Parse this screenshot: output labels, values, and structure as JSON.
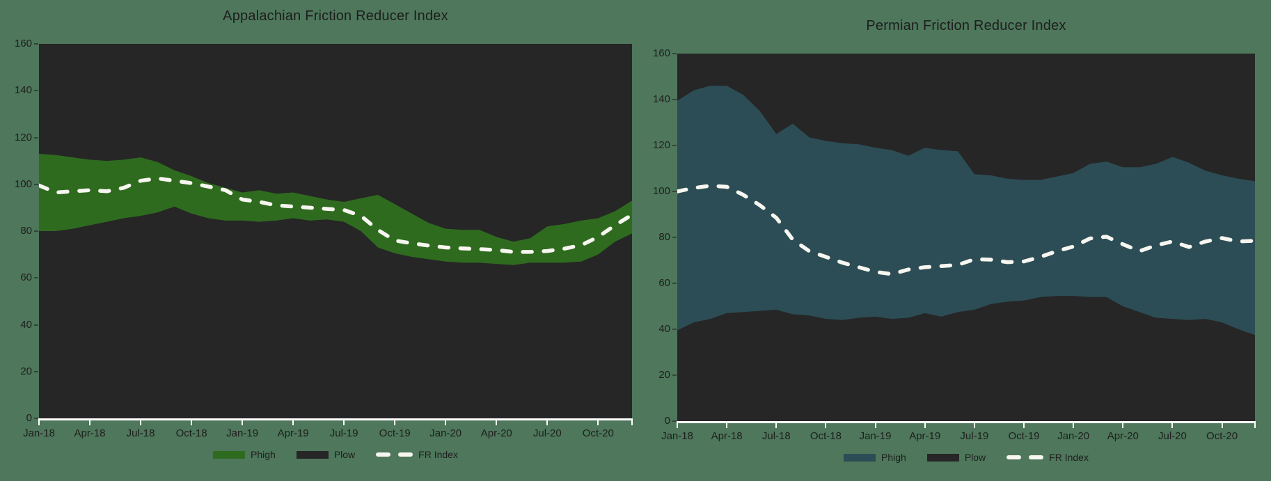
{
  "style": {
    "page_bg": "#4e775b",
    "plot_bg": "#262626",
    "text_color": "#1e1e1e",
    "axis_color": "#ffffff",
    "fr_line_color": "#f7f6f0",
    "plow_swatch_color": "#262626"
  },
  "chart_data": [
    {
      "type": "area",
      "title": "Appalachian Friction Reducer Index",
      "band_color": "#2f6b1f",
      "x_frequency": "monthly",
      "x_range": [
        "Jan-18",
        "Dec-20"
      ],
      "x_tick_labels": [
        "Jan-18",
        "Apr-18",
        "Jul-18",
        "Oct-18",
        "Jan-19",
        "Apr-19",
        "Jul-19",
        "Oct-19",
        "Jan-20",
        "Apr-20",
        "Jul-20",
        "Oct-20"
      ],
      "ylim": [
        0,
        160
      ],
      "y_ticks": [
        160,
        140,
        120,
        100,
        80,
        60,
        40,
        20,
        0
      ],
      "grid": false,
      "legend_position": "bottom-center",
      "legend": [
        {
          "label": "Phigh",
          "swatch": "band"
        },
        {
          "label": "Plow",
          "swatch": "plow"
        },
        {
          "label": "FR Index",
          "swatch": "dash"
        }
      ],
      "series": [
        {
          "name": "Phigh",
          "role": "band-upper",
          "values": [
            113,
            112.5,
            111.5,
            110.5,
            110,
            110.5,
            111.5,
            109.5,
            106,
            103.5,
            100.5,
            98.5,
            96.5,
            97.5,
            96,
            96.5,
            95,
            93.5,
            92.5,
            94,
            95.5,
            91.5,
            87.5,
            83.5,
            81,
            80.5,
            80.5,
            77.5,
            75.5,
            77,
            82,
            83,
            84.5,
            85.5,
            88.5,
            93
          ]
        },
        {
          "name": "Plow",
          "role": "band-lower",
          "values": [
            80,
            80,
            81,
            82.5,
            84,
            85.5,
            86.5,
            88,
            90.5,
            87.5,
            85.5,
            84.5,
            84.5,
            84,
            84.5,
            85.5,
            84.5,
            85,
            84,
            80,
            73,
            70.5,
            69,
            68,
            67,
            66.5,
            66.5,
            66,
            65.5,
            66.5,
            66.5,
            66.5,
            67,
            70,
            75.5,
            79
          ]
        },
        {
          "name": "FR Index",
          "role": "dashed-line",
          "values": [
            99.5,
            96.5,
            97,
            97.5,
            97,
            98.5,
            101.5,
            102.5,
            101.5,
            100.5,
            99,
            97.5,
            93.5,
            92.5,
            91,
            90.5,
            90,
            89.5,
            89,
            86.5,
            80.5,
            76,
            74.8,
            73.8,
            73,
            72.6,
            72.3,
            71.9,
            71.1,
            71.1,
            71.5,
            72.5,
            74,
            77.5,
            82.5,
            87
          ]
        }
      ]
    },
    {
      "type": "area",
      "title": "Permian Friction Reducer Index",
      "band_color": "#2c4d55",
      "x_frequency": "monthly",
      "x_range": [
        "Jan-18",
        "Dec-20"
      ],
      "x_tick_labels": [
        "Jan-18",
        "Apr-18",
        "Jul-18",
        "Oct-18",
        "Jan-19",
        "Apr-19",
        "Jul-19",
        "Oct-19",
        "Jan-20",
        "Apr-20",
        "Jul-20",
        "Oct-20"
      ],
      "ylim": [
        0,
        160
      ],
      "y_ticks": [
        160,
        140,
        120,
        100,
        80,
        60,
        40,
        20,
        0
      ],
      "grid": false,
      "legend_position": "bottom-center",
      "legend": [
        {
          "label": "Phigh",
          "swatch": "band"
        },
        {
          "label": "Plow",
          "swatch": "plow"
        },
        {
          "label": "FR Index",
          "swatch": "dash"
        }
      ],
      "series": [
        {
          "name": "Phigh",
          "role": "band-upper",
          "values": [
            139.5,
            144,
            146,
            146,
            142,
            135,
            125,
            129.5,
            123.5,
            122,
            121,
            120.5,
            119,
            118,
            115.5,
            119,
            118,
            117.5,
            107.5,
            107,
            105.5,
            105,
            105,
            106.5,
            108,
            112,
            113,
            110.5,
            110.5,
            112,
            115,
            112.5,
            109,
            107,
            105.5,
            104.5
          ]
        },
        {
          "name": "Plow",
          "role": "band-lower",
          "values": [
            39.5,
            43,
            44.5,
            47,
            47.5,
            48,
            48.5,
            46.5,
            46,
            44.5,
            44,
            45,
            45.5,
            44.5,
            45,
            47,
            45.5,
            47.5,
            48.5,
            51,
            52,
            52.5,
            54,
            54.5,
            54.5,
            54,
            54,
            50,
            47.5,
            45,
            44.5,
            44,
            44.5,
            43,
            40,
            37.5
          ]
        },
        {
          "name": "FR Index",
          "role": "dashed-line",
          "values": [
            100,
            101.5,
            102.5,
            102,
            98.5,
            94,
            88.5,
            79,
            74,
            71.5,
            69,
            67,
            65,
            64,
            66,
            67,
            67.5,
            68,
            70.5,
            70.3,
            69.2,
            69.5,
            71.5,
            74,
            76,
            79.5,
            80.3,
            77,
            74,
            76.5,
            78.2,
            75.8,
            78.2,
            79.7,
            78.2,
            78.5
          ]
        }
      ]
    }
  ]
}
